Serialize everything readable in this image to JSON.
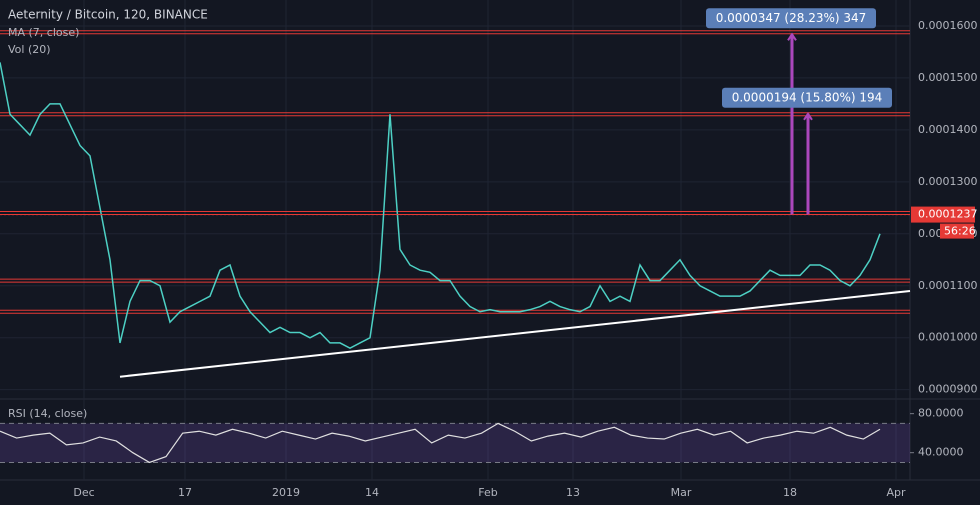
{
  "chart_data": {
    "type": "line",
    "title": "Aeternity / Bitcoin, 120, BINANCE",
    "indicators": [
      "MA (7, close)",
      "Vol (20)"
    ],
    "series": [
      {
        "name": "Close",
        "color": "#4dd0c4",
        "values": [
          0.000153,
          0.000143,
          0.000141,
          0.000139,
          0.000143,
          0.000145,
          0.000145,
          0.000141,
          0.000137,
          0.000135,
          0.000125,
          0.000115,
          9.9e-05,
          0.000107,
          0.000111,
          0.000111,
          0.00011,
          0.000103,
          0.000105,
          0.000106,
          0.000107,
          0.000108,
          0.000113,
          0.000114,
          0.000108,
          0.000105,
          0.000103,
          0.000101,
          0.000102,
          0.000101,
          0.000101,
          0.0001,
          0.000101,
          9.9e-05,
          9.9e-05,
          9.8e-05,
          9.9e-05,
          0.0001,
          0.000113,
          0.000143,
          0.000117,
          0.000114,
          0.000113,
          0.0001126,
          0.000111,
          0.000111,
          0.000108,
          0.000106,
          0.000105,
          0.0001054,
          0.000105,
          0.000105,
          0.000105,
          0.0001054,
          0.000106,
          0.000107,
          0.000106,
          0.0001054,
          0.000105,
          0.000106,
          0.00011,
          0.000107,
          0.000108,
          0.000107,
          0.000114,
          0.000111,
          0.000111,
          0.000113,
          0.000115,
          0.000112,
          0.00011,
          0.000109,
          0.000108,
          0.000108,
          0.000108,
          0.000109,
          0.000111,
          0.000113,
          0.000112,
          0.000112,
          0.000112,
          0.000114,
          0.000114,
          0.000113,
          0.000111,
          0.00011,
          0.000112,
          0.000115,
          0.00012
        ]
      }
    ],
    "ylim": [
      8.84e-05,
      0.000165
    ],
    "yticks": [
      {
        "value": 9e-05,
        "label": "0.0000900"
      },
      {
        "value": 0.0001,
        "label": "0.0001000"
      },
      {
        "value": 0.00011,
        "label": "0.0001100"
      },
      {
        "value": 0.00012,
        "label": "0.0001200"
      },
      {
        "value": 0.00013,
        "label": "0.0001300"
      },
      {
        "value": 0.00014,
        "label": "0.0001400"
      },
      {
        "value": 0.00015,
        "label": "0.0001500"
      },
      {
        "value": 0.00016,
        "label": "0.0001600"
      }
    ],
    "xlim": [
      0,
      91
    ],
    "xticks": [
      {
        "value": 8.4,
        "label": "Dec"
      },
      {
        "value": 18.5,
        "label": "17"
      },
      {
        "value": 28.6,
        "label": "2019"
      },
      {
        "value": 37.2,
        "label": "14"
      },
      {
        "value": 48.8,
        "label": "Feb"
      },
      {
        "value": 57.3,
        "label": "13"
      },
      {
        "value": 68.1,
        "label": "Mar"
      },
      {
        "value": 79,
        "label": "18"
      },
      {
        "value": 89.6,
        "label": "Apr"
      }
    ],
    "levels": [
      0.0001588,
      0.000143,
      0.000124,
      0.000111,
      0.000105
    ],
    "trendline": {
      "x": [
        12,
        91
      ],
      "y": [
        9.25e-05,
        0.000109
      ]
    },
    "measures": [
      {
        "label": "0.0000347 (28.23%) 347",
        "x": 79.2,
        "from": 0.0001237,
        "to": 0.0001584
      },
      {
        "label": "0.0000194 (15.80%) 194",
        "x": 80.8,
        "from": 0.0001237,
        "to": 0.0001431
      }
    ],
    "last_price": {
      "value": 0.0001237,
      "label": "0.0001237"
    },
    "countdown": "56:26",
    "rsi": {
      "name": "RSI (14, close)",
      "color": "#e0e0e0",
      "values": [
        62,
        55,
        58,
        60,
        48,
        50,
        56,
        52,
        40,
        30,
        36,
        60,
        62,
        58,
        64,
        60,
        55,
        62,
        58,
        54,
        60,
        57,
        52,
        56,
        60,
        64,
        50,
        58,
        55,
        60,
        70,
        62,
        52,
        57,
        60,
        56,
        62,
        66,
        58,
        55,
        54,
        60,
        64,
        58,
        62,
        50,
        55,
        58,
        62,
        60,
        66,
        58,
        54,
        64
      ],
      "ylim": [
        12,
        94
      ],
      "yticks": [
        {
          "value": 40,
          "label": "40.0000"
        },
        {
          "value": 80,
          "label": "80.0000"
        }
      ],
      "bands": [
        30,
        70
      ]
    }
  }
}
